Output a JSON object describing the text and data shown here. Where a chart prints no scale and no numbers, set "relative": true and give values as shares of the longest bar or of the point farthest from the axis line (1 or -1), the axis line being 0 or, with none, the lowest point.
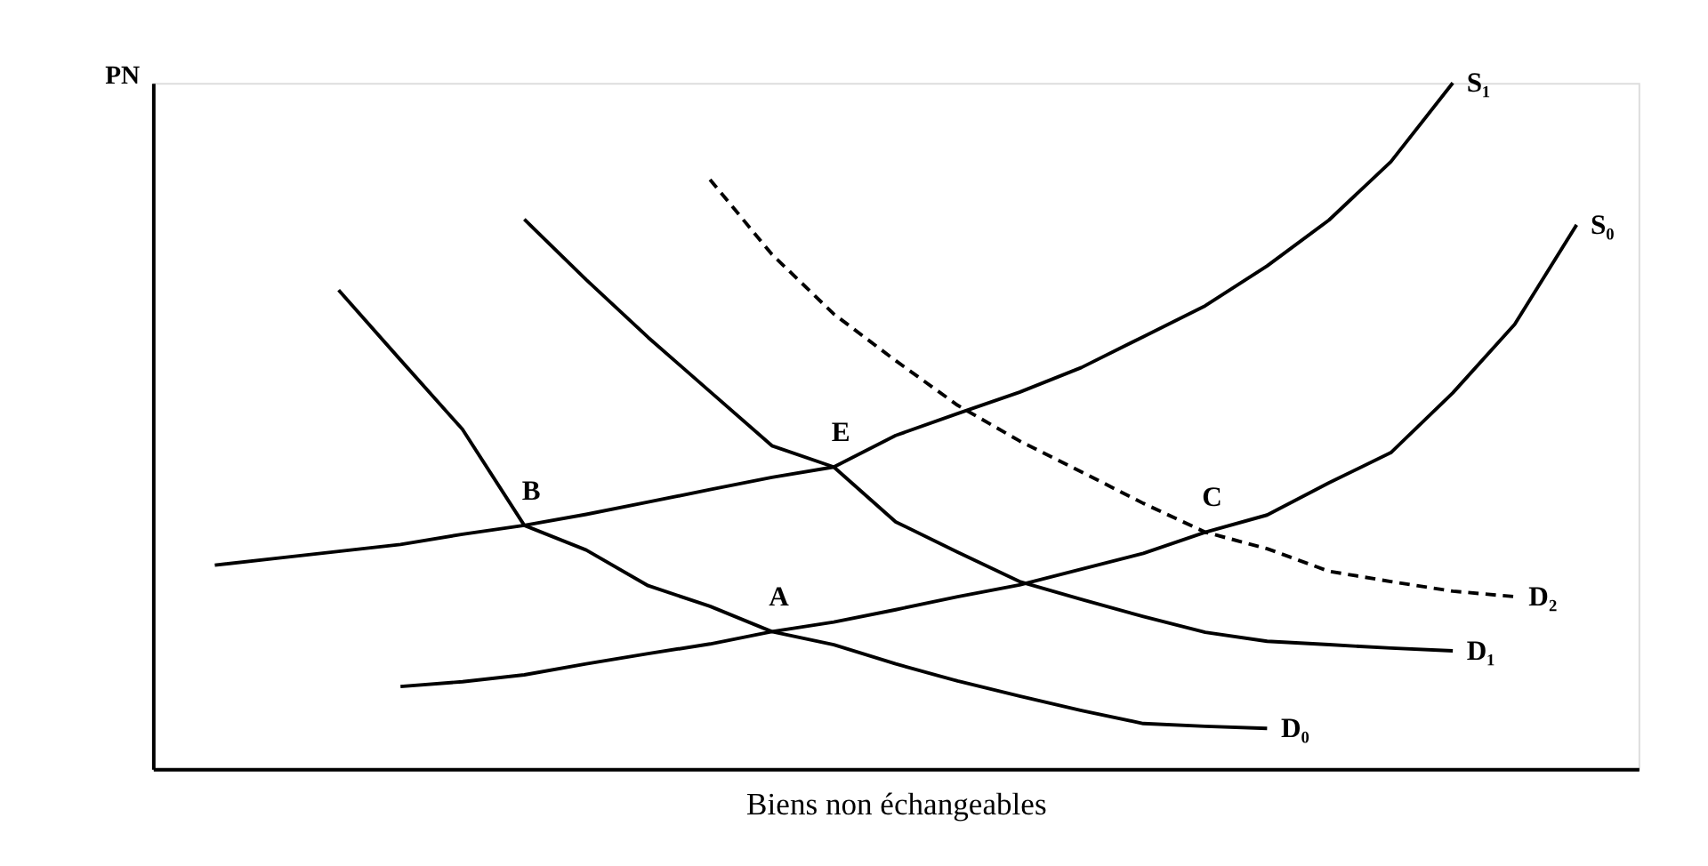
{
  "chart_data": {
    "type": "line",
    "relative": true,
    "xlabel": "Biens non échangeables",
    "ylabel": "PN",
    "legend": false,
    "grid": false,
    "tick_labels": false,
    "marker": "none",
    "categories": [
      null,
      null,
      null,
      null,
      null,
      null,
      null,
      null,
      null,
      null,
      null,
      null,
      null,
      null,
      null,
      null,
      null,
      null,
      null,
      null,
      null,
      null,
      null,
      null,
      null
    ],
    "series": [
      {
        "name": "S₁",
        "color": "#000000",
        "line_style": "solid",
        "values": [
          null,
          0.297,
          0.307,
          0.317,
          0.327,
          0.342,
          0.355,
          0.371,
          0.389,
          0.407,
          0.425,
          0.44,
          0.486,
          0.518,
          0.549,
          0.585,
          0.63,
          0.675,
          0.733,
          0.8,
          0.885,
          1.0,
          null,
          null,
          null
        ]
      },
      {
        "name": "S₀",
        "color": "#000000",
        "line_style": "solid",
        "values": [
          null,
          null,
          null,
          null,
          0.12,
          0.127,
          0.137,
          0.153,
          0.168,
          0.182,
          0.2,
          0.214,
          0.232,
          0.251,
          0.268,
          0.291,
          0.314,
          0.345,
          0.37,
          0.417,
          0.461,
          0.548,
          0.648,
          0.793,
          null
        ]
      },
      {
        "name": "D₀",
        "color": "#000000",
        "line_style": "solid",
        "values": [
          null,
          null,
          null,
          0.698,
          0.596,
          0.495,
          0.355,
          0.319,
          0.267,
          0.237,
          0.2,
          0.181,
          0.153,
          0.128,
          0.106,
          0.085,
          0.066,
          0.062,
          0.059,
          null,
          null,
          null,
          null,
          null,
          null
        ]
      },
      {
        "name": "D₁",
        "color": "#000000",
        "line_style": "solid",
        "values": [
          null,
          null,
          null,
          null,
          null,
          null,
          0.801,
          0.713,
          0.629,
          0.55,
          0.471,
          0.44,
          0.36,
          0.316,
          0.273,
          0.247,
          0.222,
          0.199,
          0.186,
          0.181,
          0.176,
          0.172,
          null,
          null,
          null
        ]
      },
      {
        "name": "D₂",
        "color": "#000000",
        "line_style": "dashed",
        "values": [
          null,
          null,
          null,
          null,
          null,
          null,
          null,
          null,
          null,
          0.859,
          0.75,
          0.663,
          0.595,
          0.53,
          0.478,
          0.433,
          0.387,
          0.345,
          0.321,
          0.288,
          0.273,
          0.259,
          0.251,
          null,
          null
        ]
      }
    ],
    "annotations": [
      {
        "text": "E",
        "y": 0.44
      },
      {
        "text": "B",
        "y": 0.355
      },
      {
        "text": "A",
        "y": 0.2
      },
      {
        "text": "C",
        "y": 0.345
      }
    ]
  }
}
